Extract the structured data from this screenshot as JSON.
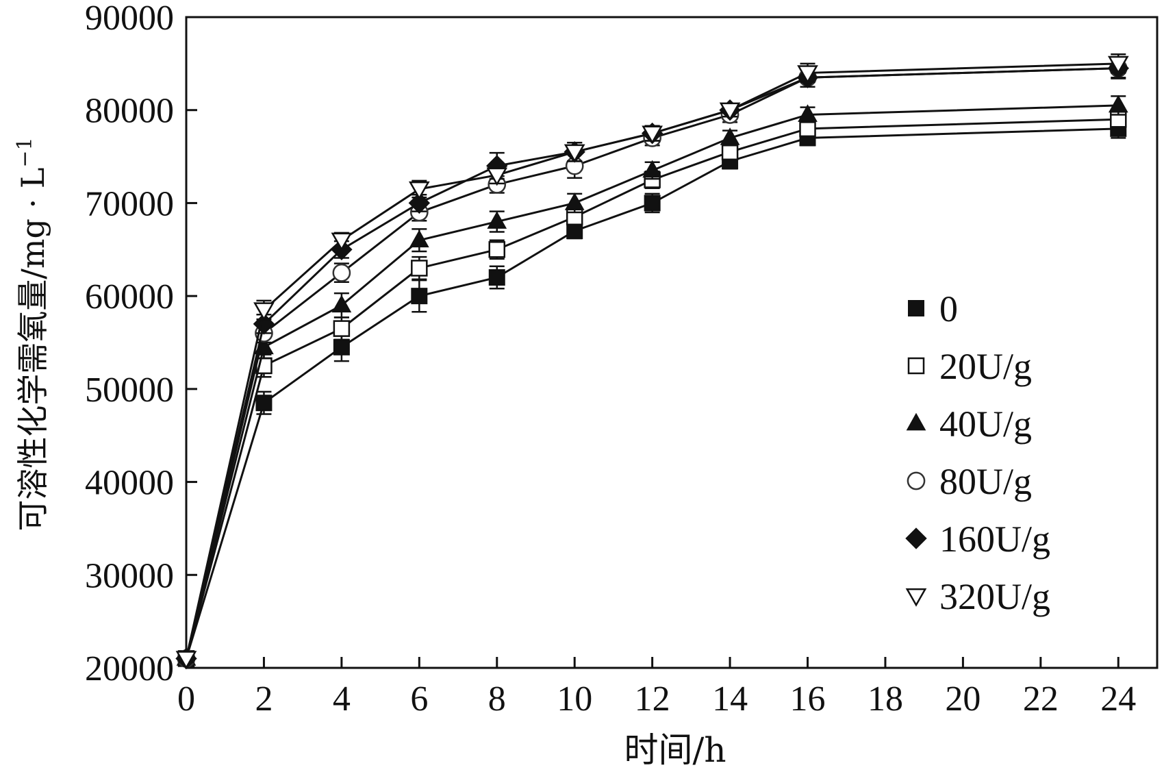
{
  "chart_data": {
    "type": "line",
    "xlabel": "时间/h",
    "ylabel": "可溶性化学需氧量/mg · L",
    "ylabel_superscript": "−1",
    "xlim": [
      0,
      25
    ],
    "ylim": [
      20000,
      90000
    ],
    "x_ticks": [
      "0",
      "2",
      "4",
      "6",
      "8",
      "10",
      "12",
      "14",
      "16",
      "18",
      "20",
      "22",
      "24"
    ],
    "y_ticks": [
      "20000",
      "30000",
      "40000",
      "50000",
      "60000",
      "70000",
      "80000",
      "90000"
    ],
    "grid": false,
    "legend_position": "right-center",
    "x": [
      0,
      2,
      4,
      6,
      8,
      10,
      12,
      14,
      16,
      24
    ],
    "series": [
      {
        "name": "0",
        "marker": "square-filled",
        "values": [
          21000,
          48500,
          54500,
          60000,
          62000,
          67000,
          70000,
          74500,
          77000,
          78000
        ],
        "errors": [
          400,
          1200,
          1500,
          1700,
          1200,
          800,
          1000,
          800,
          800,
          1000
        ]
      },
      {
        "name": "20U/g",
        "marker": "square-open",
        "values": [
          21000,
          52500,
          56500,
          63000,
          65000,
          68500,
          72500,
          75500,
          78000,
          79000
        ],
        "errors": [
          400,
          1200,
          1200,
          1200,
          1000,
          1000,
          900,
          800,
          800,
          900
        ]
      },
      {
        "name": "40U/g",
        "marker": "triangle-up-filled",
        "values": [
          21000,
          54500,
          59000,
          66000,
          68000,
          70000,
          73500,
          77000,
          79500,
          80500
        ],
        "errors": [
          400,
          1200,
          1300,
          1200,
          1100,
          1000,
          900,
          800,
          800,
          1000
        ]
      },
      {
        "name": "80U/g",
        "marker": "circle-open",
        "values": [
          21000,
          56000,
          62500,
          69000,
          72000,
          74000,
          77000,
          79500,
          83500,
          84500
        ],
        "errors": [
          400,
          1000,
          1000,
          900,
          900,
          1300,
          800,
          800,
          1000,
          1000
        ]
      },
      {
        "name": "160U/g",
        "marker": "diamond-filled",
        "values": [
          21000,
          57000,
          65000,
          70000,
          74000,
          75500,
          77500,
          80000,
          83500,
          84500
        ],
        "errors": [
          400,
          1000,
          900,
          900,
          1400,
          1000,
          800,
          700,
          1000,
          1100
        ]
      },
      {
        "name": "320U/g",
        "marker": "triangle-down-open",
        "values": [
          21000,
          58500,
          66000,
          71500,
          73000,
          75500,
          77500,
          80000,
          84000,
          85000
        ],
        "errors": [
          400,
          1000,
          800,
          900,
          900,
          1000,
          800,
          700,
          1000,
          1000
        ]
      }
    ]
  }
}
